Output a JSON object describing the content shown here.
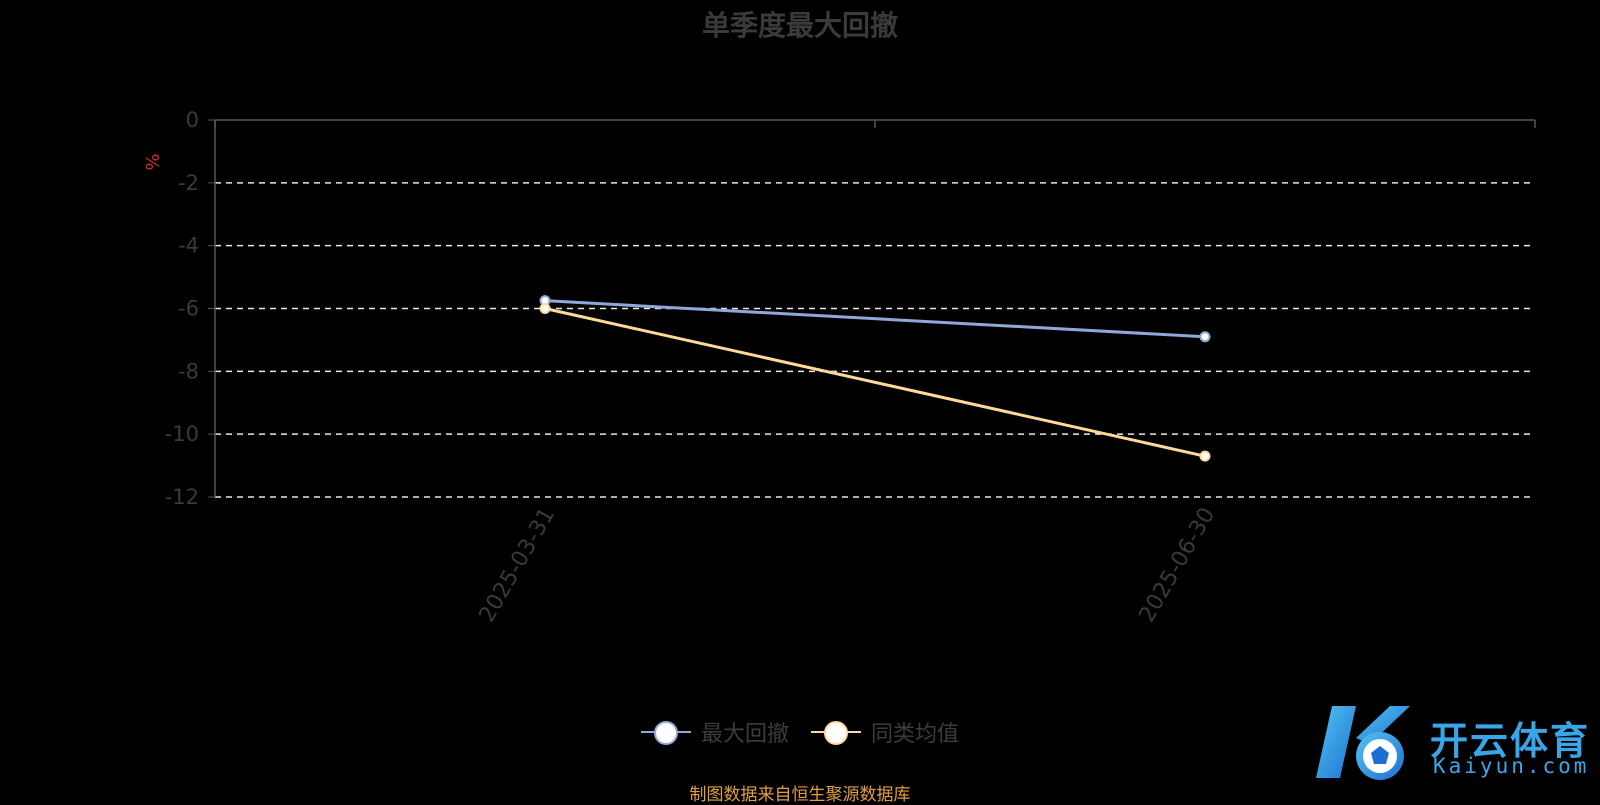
{
  "chart_data": {
    "type": "line",
    "title": "单季度最大回撤",
    "ylabel": "%",
    "x": [
      "2025-03-31",
      "2025-06-30"
    ],
    "ylim": [
      -12,
      0
    ],
    "yticks": [
      0,
      -2,
      -4,
      -6,
      -8,
      -10,
      -12
    ],
    "grid": true,
    "legend_position": "bottom-center",
    "series": [
      {
        "name": "最大回撤",
        "values": [
          -5.75,
          -6.9
        ],
        "color": "#8fa8d8"
      },
      {
        "name": "同类均值",
        "values": [
          -6.0,
          -10.7
        ],
        "color": "#ffd89a"
      }
    ]
  },
  "source_note": "制图数据来自恒生聚源数据库",
  "logo": {
    "cn": "开云体育",
    "en": "Kaiyun.com",
    "color": "#3aa6ea"
  }
}
